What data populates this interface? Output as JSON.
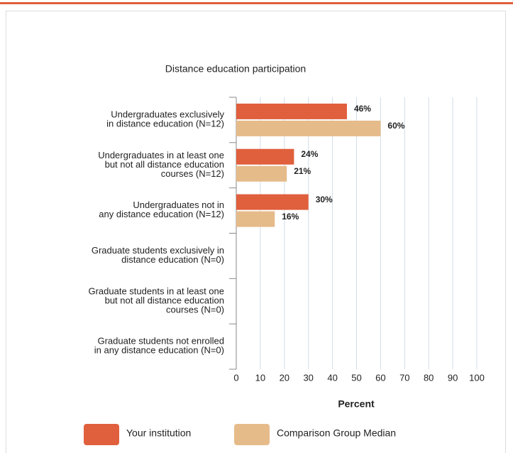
{
  "chart_data": {
    "type": "hbar",
    "title": "Distance education participation",
    "xlabel": "Percent",
    "categories": [
      "Undergraduates exclusively\nin distance education (N=12)",
      "Undergraduates in at least one\nbut not all distance education\ncourses (N=12)",
      "Undergraduates not in\nany distance education (N=12)",
      "Graduate students exclusively in\ndistance education (N=0)",
      "Graduate students in at least one\nbut not all distance education\ncourses (N=0)",
      "Graduate students not enrolled\nin any distance education (N=0)"
    ],
    "series": [
      {
        "name": "Your institution",
        "color": "#e05f3c",
        "values": [
          46,
          24,
          30,
          null,
          null,
          null
        ],
        "value_labels": [
          "46%",
          "24%",
          "30%",
          null,
          null,
          null
        ]
      },
      {
        "name": "Comparison Group Median",
        "color": "#e6bb8a",
        "values": [
          60,
          21,
          16,
          null,
          null,
          null
        ],
        "value_labels": [
          "60%",
          "21%",
          "16%",
          null,
          null,
          null
        ]
      }
    ],
    "xlim": [
      0,
      100
    ],
    "xticks": [
      0,
      10,
      20,
      30,
      40,
      50,
      60,
      70,
      80,
      90,
      100
    ],
    "grid": true
  }
}
